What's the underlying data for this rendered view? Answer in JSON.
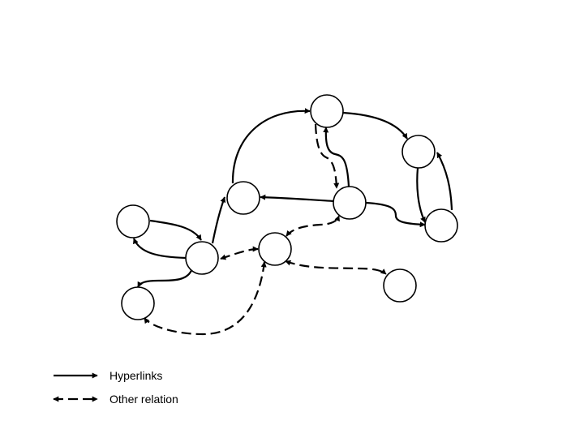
{
  "legend": {
    "hyperlinks_label": "Hyperlinks",
    "other_relation_label": "Other relation"
  },
  "colors": {
    "stroke": "#000000",
    "node_fill": "#ffffff",
    "background": "#ffffff"
  },
  "nodes": [
    {
      "id": "n-top"
    },
    {
      "id": "n-top-right"
    },
    {
      "id": "n-upper-left"
    },
    {
      "id": "n-center-right"
    },
    {
      "id": "n-far-left"
    },
    {
      "id": "n-right"
    },
    {
      "id": "n-left-hub"
    },
    {
      "id": "n-center"
    },
    {
      "id": "n-lower-right"
    },
    {
      "id": "n-bottom-left"
    }
  ],
  "edges": [
    {
      "from": "n-top",
      "to": "n-top-right",
      "relation": "hyperlink"
    },
    {
      "from": "n-top-right",
      "to": "n-right",
      "relation": "hyperlink"
    },
    {
      "from": "n-right",
      "to": "n-top-right",
      "relation": "hyperlink"
    },
    {
      "from": "n-upper-left",
      "to": "n-top",
      "relation": "hyperlink"
    },
    {
      "from": "n-center-right",
      "to": "n-top",
      "relation": "hyperlink"
    },
    {
      "from": "n-top",
      "to": "n-center-right",
      "relation": "other"
    },
    {
      "from": "n-center-right",
      "to": "n-upper-left",
      "relation": "hyperlink"
    },
    {
      "from": "n-center-right",
      "to": "n-right",
      "relation": "hyperlink"
    },
    {
      "from": "n-far-left",
      "to": "n-left-hub",
      "relation": "hyperlink"
    },
    {
      "from": "n-left-hub",
      "to": "n-far-left",
      "relation": "hyperlink"
    },
    {
      "from": "n-left-hub",
      "to": "n-upper-left",
      "relation": "hyperlink"
    },
    {
      "from": "n-left-hub",
      "to": "n-bottom-left",
      "relation": "hyperlink"
    },
    {
      "from": "n-left-hub",
      "to": "n-center",
      "relation": "other"
    },
    {
      "from": "n-center",
      "to": "n-center-right",
      "relation": "other"
    },
    {
      "from": "n-center",
      "to": "n-lower-right",
      "relation": "other"
    },
    {
      "from": "n-center",
      "to": "n-bottom-left",
      "relation": "other"
    }
  ]
}
